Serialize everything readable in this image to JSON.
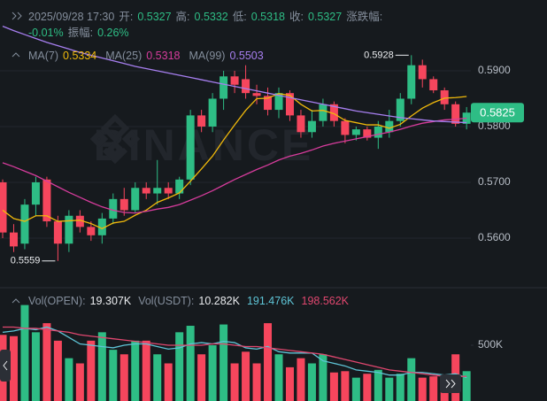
{
  "header": {
    "lines": [
      [
        {
          "label": "2025/09/28 17:30"
        },
        {
          "label": "开:"
        },
        {
          "value": "0.5327"
        },
        {
          "label": "高:"
        },
        {
          "value": "0.5332"
        },
        {
          "label": "低:"
        },
        {
          "value": "0.5318"
        },
        {
          "label": "收:"
        },
        {
          "value": "0.5327"
        },
        {
          "label": "涨跌幅:"
        }
      ],
      [
        {
          "value": "-0.01%"
        },
        {
          "label": "振幅:"
        },
        {
          "value": "0.26%"
        }
      ]
    ]
  },
  "chart_data": [
    {
      "type": "candlestick",
      "watermark": "BINANCE",
      "up_color": "#2ebd85",
      "down_color": "#f6465d",
      "ylim": [
        0.5511,
        0.6027
      ],
      "yticks": [
        {
          "value": 0.56,
          "label": "0.5600"
        },
        {
          "value": 0.57,
          "label": "0.5700"
        },
        {
          "value": 0.58,
          "label": "0.5800"
        },
        {
          "value": 0.59,
          "label": "0.5900"
        }
      ],
      "grid": true,
      "last_price": 0.5825,
      "open": [
        0.57,
        0.561,
        0.559,
        0.566,
        0.5705,
        0.563,
        0.559,
        0.564,
        0.562,
        0.5605,
        0.5635,
        0.567,
        0.565,
        0.569,
        0.568,
        0.569,
        0.568,
        0.5705,
        0.582,
        0.58,
        0.585,
        0.589,
        0.5885,
        0.586,
        0.5855,
        0.583,
        0.586,
        0.582,
        0.579,
        0.581,
        0.584,
        0.581,
        0.5785,
        0.5795,
        0.578,
        0.579,
        0.581,
        0.585,
        0.591,
        0.5885,
        0.5865,
        0.584,
        0.5805
      ],
      "high": [
        0.5705,
        0.5625,
        0.567,
        0.571,
        0.571,
        0.564,
        0.565,
        0.565,
        0.563,
        0.5645,
        0.568,
        0.569,
        0.57,
        0.57,
        0.574,
        0.57,
        0.571,
        0.583,
        0.583,
        0.586,
        0.59,
        0.59,
        0.591,
        0.5875,
        0.587,
        0.587,
        0.5865,
        0.583,
        0.583,
        0.585,
        0.5845,
        0.5815,
        0.58,
        0.58,
        0.581,
        0.583,
        0.586,
        0.5928,
        0.592,
        0.589,
        0.587,
        0.5845,
        0.5835
      ],
      "low": [
        0.56,
        0.5575,
        0.558,
        0.564,
        0.562,
        0.5559,
        0.5575,
        0.561,
        0.5595,
        0.559,
        0.5625,
        0.564,
        0.5645,
        0.567,
        0.566,
        0.567,
        0.567,
        0.5695,
        0.579,
        0.579,
        0.583,
        0.586,
        0.585,
        0.584,
        0.582,
        0.5815,
        0.581,
        0.578,
        0.578,
        0.58,
        0.58,
        0.577,
        0.5775,
        0.5775,
        0.576,
        0.578,
        0.58,
        0.584,
        0.587,
        0.586,
        0.583,
        0.58,
        0.5795
      ],
      "close": [
        0.561,
        0.5585,
        0.566,
        0.57,
        0.563,
        0.559,
        0.564,
        0.562,
        0.5605,
        0.5635,
        0.567,
        0.565,
        0.569,
        0.568,
        0.569,
        0.568,
        0.5705,
        0.582,
        0.58,
        0.585,
        0.589,
        0.5875,
        0.586,
        0.5855,
        0.583,
        0.586,
        0.582,
        0.579,
        0.581,
        0.584,
        0.581,
        0.5785,
        0.5795,
        0.578,
        0.58,
        0.581,
        0.585,
        0.591,
        0.5885,
        0.5865,
        0.584,
        0.5805,
        0.5825
      ],
      "series": [
        {
          "name": "MA(7)",
          "color": "#f0b90b",
          "legend_value": 0.5334,
          "values": [
            0.565,
            0.5635,
            0.563,
            0.564,
            0.564,
            0.563,
            0.5631,
            0.5632,
            0.5626,
            0.5617,
            0.5627,
            0.563,
            0.5641,
            0.565,
            0.5664,
            0.5672,
            0.5681,
            0.5702,
            0.5724,
            0.5747,
            0.5776,
            0.5803,
            0.5829,
            0.585,
            0.5851,
            0.5859,
            0.5856,
            0.584,
            0.5828,
            0.5829,
            0.5823,
            0.5811,
            0.5807,
            0.5803,
            0.5803,
            0.5797,
            0.5804,
            0.5819,
            0.5833,
            0.5843,
            0.5851,
            0.5852,
            0.5854
          ]
        },
        {
          "name": "MA(25)",
          "color": "#d63c9c",
          "legend_value": 0.5318,
          "values": [
            0.5735,
            0.5728,
            0.572,
            0.5712,
            0.5702,
            0.5692,
            0.5682,
            0.5673,
            0.5664,
            0.5656,
            0.565,
            0.5646,
            0.5645,
            0.5648,
            0.5652,
            0.5655,
            0.566,
            0.5668,
            0.5676,
            0.5685,
            0.5695,
            0.5705,
            0.5714,
            0.5723,
            0.5731,
            0.574,
            0.5747,
            0.5752,
            0.5758,
            0.5765,
            0.577,
            0.5774,
            0.5778,
            0.5782,
            0.5786,
            0.579,
            0.5795,
            0.5801,
            0.5806,
            0.5809,
            0.5812,
            0.5813,
            0.5815
          ]
        },
        {
          "name": "MA(99)",
          "color": "#a77ff0",
          "legend_value": 0.5503,
          "values": [
            0.598,
            0.5972,
            0.5965,
            0.5958,
            0.5951,
            0.5945,
            0.5939,
            0.5933,
            0.5928,
            0.5923,
            0.5918,
            0.5913,
            0.5908,
            0.5904,
            0.59,
            0.5896,
            0.5892,
            0.5888,
            0.5884,
            0.588,
            0.5876,
            0.5872,
            0.5868,
            0.5864,
            0.586,
            0.5856,
            0.5852,
            0.5848,
            0.5844,
            0.584,
            0.5836,
            0.5832,
            0.5828,
            0.5825,
            0.5822,
            0.5819,
            0.5816,
            0.5814,
            0.5812,
            0.581,
            0.5809,
            0.5808,
            0.5807
          ]
        }
      ]
    },
    {
      "type": "bar",
      "ylim": [
        70000,
        930000
      ],
      "yticks": [
        {
          "value": 500000,
          "label": "500K"
        }
      ],
      "legend": [
        {
          "name": "Vol(OPEN):",
          "value": "19.307K"
        },
        {
          "name": "Vol(USDT):",
          "value": "10.282K"
        }
      ],
      "values": [
        580000,
        570000,
        810000,
        600000,
        670000,
        535000,
        400000,
        360000,
        535000,
        600000,
        465000,
        430000,
        535000,
        535000,
        430000,
        360000,
        600000,
        650000,
        430000,
        500000,
        660000,
        360000,
        450000,
        360000,
        670000,
        430000,
        330000,
        400000,
        360000,
        430000,
        290000,
        300000,
        250000,
        280000,
        310000,
        250000,
        280000,
        400000,
        250000,
        260000,
        230000,
        430000,
        300000
      ],
      "series": [
        {
          "color": "#5ec4d6",
          "legend_label": "191.476K",
          "values": [
            600000,
            610000,
            630000,
            620000,
            640000,
            610000,
            560000,
            510000,
            500000,
            490000,
            480000,
            500000,
            510000,
            510000,
            490000,
            470000,
            480000,
            510000,
            520000,
            510000,
            530000,
            520000,
            480000,
            470000,
            490000,
            450000,
            440000,
            440000,
            440000,
            380000,
            360000,
            340000,
            310000,
            300000,
            290000,
            270000,
            270000,
            290000,
            290000,
            280000,
            270000,
            280000,
            250000
          ]
        },
        {
          "color": "#e0476f",
          "legend_label": "198.562K",
          "values": [
            640000,
            640000,
            630000,
            630000,
            620000,
            610000,
            600000,
            580000,
            570000,
            560000,
            550000,
            540000,
            530000,
            520000,
            510000,
            500000,
            500000,
            500000,
            500000,
            510000,
            510000,
            500000,
            490000,
            490000,
            480000,
            470000,
            460000,
            450000,
            440000,
            430000,
            410000,
            390000,
            370000,
            350000,
            330000,
            310000,
            300000,
            290000,
            280000,
            270000,
            260000,
            260000,
            260000
          ]
        }
      ]
    }
  ]
}
